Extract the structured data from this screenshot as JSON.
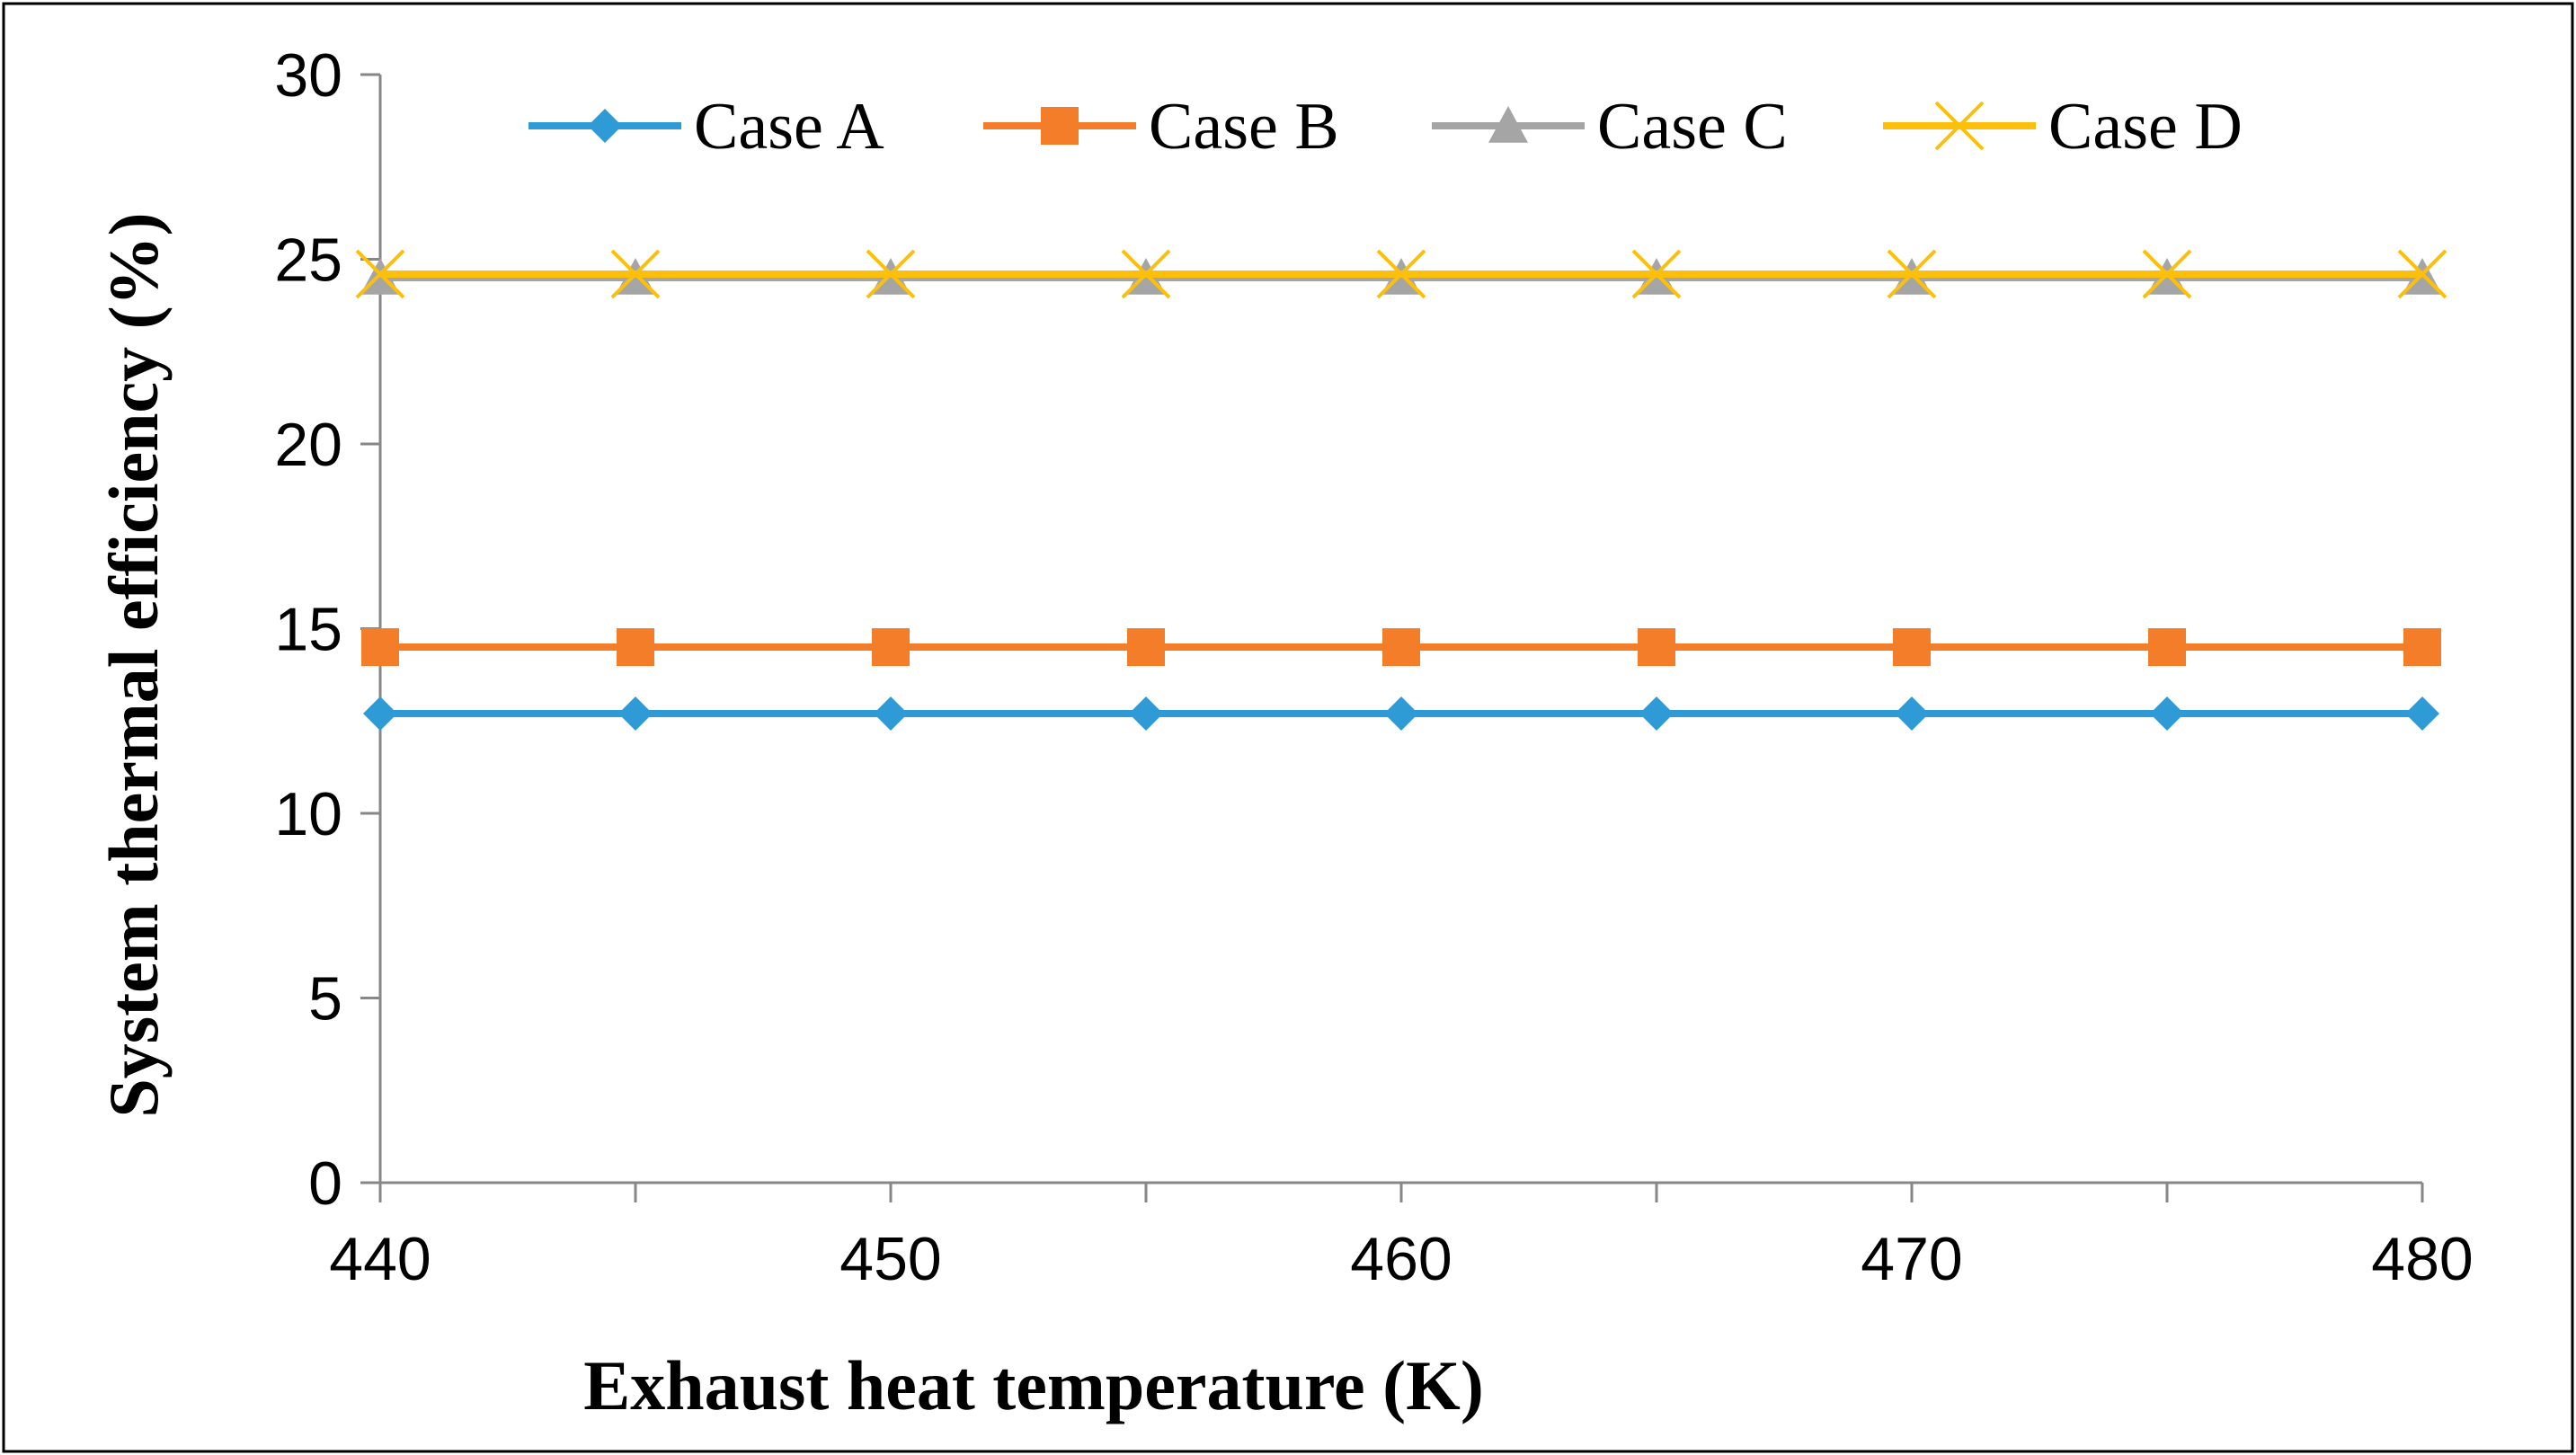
{
  "chart_data": {
    "type": "line",
    "title": "",
    "xlabel": "Exhaust heat temperature (K)",
    "ylabel": "System thermal efficiency (%)",
    "x": [
      440,
      445,
      450,
      455,
      460,
      465,
      470,
      475,
      480
    ],
    "xlim": [
      440,
      480
    ],
    "ylim": [
      0,
      30
    ],
    "x_ticks": [
      440,
      450,
      460,
      470,
      480
    ],
    "y_ticks": [
      0,
      5,
      10,
      15,
      20,
      25,
      30
    ],
    "x_tick_labels": [
      "440",
      "450",
      "460",
      "470",
      "480"
    ],
    "y_tick_labels": [
      "0",
      "5",
      "10",
      "15",
      "20",
      "25",
      "30"
    ],
    "grid": false,
    "legend_position": "top",
    "series": [
      {
        "name": "Case A",
        "color": "#2E9BD6",
        "marker": "diamond",
        "values": [
          12.7,
          12.7,
          12.7,
          12.7,
          12.7,
          12.7,
          12.7,
          12.7,
          12.7
        ]
      },
      {
        "name": "Case B",
        "color": "#F47D2A",
        "marker": "square",
        "values": [
          14.5,
          14.5,
          14.5,
          14.5,
          14.5,
          14.5,
          14.5,
          14.5,
          14.5
        ]
      },
      {
        "name": "Case C",
        "color": "#A5A5A5",
        "marker": "triangle",
        "values": [
          24.5,
          24.5,
          24.5,
          24.5,
          24.5,
          24.5,
          24.5,
          24.5,
          24.5
        ]
      },
      {
        "name": "Case D",
        "color": "#FCC00C",
        "marker": "x",
        "values": [
          24.6,
          24.6,
          24.6,
          24.6,
          24.6,
          24.6,
          24.6,
          24.6,
          24.6
        ]
      }
    ]
  }
}
